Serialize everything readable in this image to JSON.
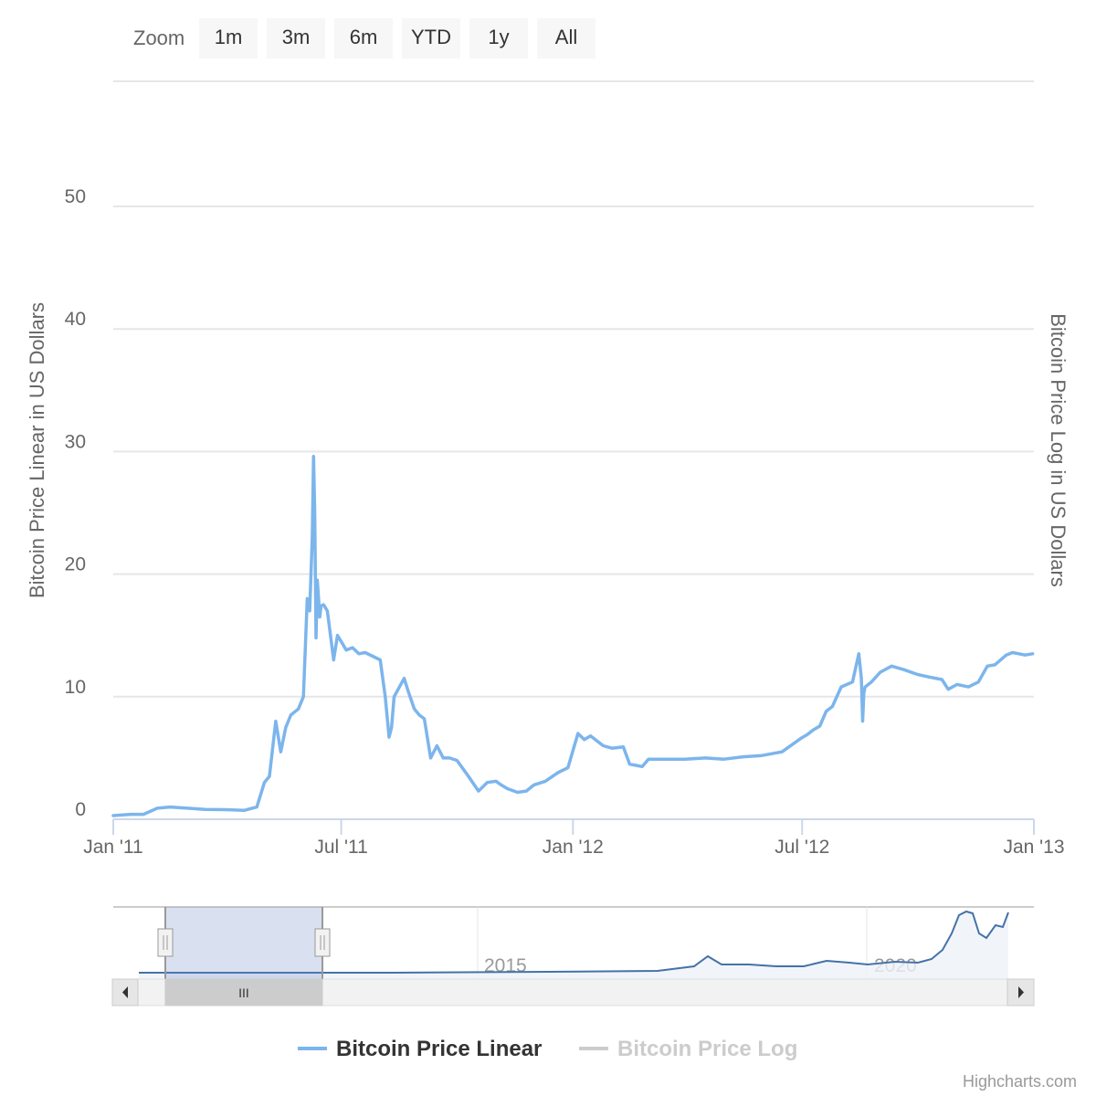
{
  "range_selector": {
    "label": "Zoom",
    "buttons": [
      "1m",
      "3m",
      "6m",
      "YTD",
      "1y",
      "All"
    ]
  },
  "chart_data": {
    "type": "line",
    "xlabel": "",
    "ylabel": "Bitcoin Price Linear in US Dollars",
    "y2label": "Bitcoin Price Log in US Dollars",
    "ylim": [
      0,
      60
    ],
    "yticks": [
      "0",
      "10",
      "20",
      "30",
      "40",
      "50"
    ],
    "xlim": [
      "2011-01-01",
      "2013-01-01"
    ],
    "xticks": [
      {
        "date": "2011-01-01",
        "label": "Jan '11"
      },
      {
        "date": "2011-07-01",
        "label": "Jul '11"
      },
      {
        "date": "2012-01-01",
        "label": "Jan '12"
      },
      {
        "date": "2012-07-01",
        "label": "Jul '12"
      },
      {
        "date": "2013-01-01",
        "label": "Jan '13"
      }
    ],
    "grid": true,
    "legend_position": "bottom",
    "series": [
      {
        "name": "Bitcoin Price Linear",
        "color": "#7cb5ec",
        "visible": true,
        "x": [
          "2011-01-01",
          "2011-01-15",
          "2011-01-25",
          "2011-02-05",
          "2011-02-15",
          "2011-03-01",
          "2011-03-15",
          "2011-04-01",
          "2011-04-15",
          "2011-04-25",
          "2011-05-01",
          "2011-05-05",
          "2011-05-10",
          "2011-05-14",
          "2011-05-18",
          "2011-05-22",
          "2011-05-28",
          "2011-06-01",
          "2011-06-04",
          "2011-06-06",
          "2011-06-08",
          "2011-06-09",
          "2011-06-10",
          "2011-06-11",
          "2011-06-12",
          "2011-06-13",
          "2011-06-14",
          "2011-06-15",
          "2011-06-17",
          "2011-06-20",
          "2011-06-25",
          "2011-06-28",
          "2011-07-01",
          "2011-07-05",
          "2011-07-10",
          "2011-07-15",
          "2011-07-20",
          "2011-08-01",
          "2011-08-05",
          "2011-08-08",
          "2011-08-10",
          "2011-08-12",
          "2011-08-20",
          "2011-08-23",
          "2011-08-28",
          "2011-09-01",
          "2011-09-05",
          "2011-09-10",
          "2011-09-15",
          "2011-09-20",
          "2011-09-25",
          "2011-10-01",
          "2011-10-10",
          "2011-10-18",
          "2011-10-20",
          "2011-10-25",
          "2011-11-01",
          "2011-11-05",
          "2011-11-10",
          "2011-11-18",
          "2011-11-25",
          "2011-12-01",
          "2011-12-10",
          "2011-12-20",
          "2011-12-28",
          "2012-01-05",
          "2012-01-10",
          "2012-01-15",
          "2012-01-25",
          "2012-02-01",
          "2012-02-10",
          "2012-02-15",
          "2012-02-20",
          "2012-02-25",
          "2012-03-01",
          "2012-03-15",
          "2012-03-30",
          "2012-04-15",
          "2012-04-30",
          "2012-05-15",
          "2012-05-30",
          "2012-06-15",
          "2012-06-30",
          "2012-07-05",
          "2012-07-10",
          "2012-07-15",
          "2012-07-20",
          "2012-07-25",
          "2012-08-01",
          "2012-08-10",
          "2012-08-15",
          "2012-08-17",
          "2012-08-18",
          "2012-08-19",
          "2012-08-20",
          "2012-08-25",
          "2012-09-01",
          "2012-09-10",
          "2012-09-20",
          "2012-10-01",
          "2012-10-10",
          "2012-10-20",
          "2012-10-25",
          "2012-11-01",
          "2012-11-10",
          "2012-11-18",
          "2012-11-25",
          "2012-12-01",
          "2012-12-10",
          "2012-12-15",
          "2012-12-20",
          "2012-12-25",
          "2012-12-31"
        ],
        "y": [
          0.3,
          0.4,
          0.4,
          0.9,
          1.0,
          0.9,
          0.8,
          0.78,
          0.72,
          1.0,
          3.0,
          3.5,
          8.0,
          5.5,
          7.5,
          8.5,
          9.0,
          10.0,
          18.0,
          17.0,
          23.0,
          29.6,
          25.0,
          14.8,
          19.5,
          18.0,
          16.5,
          17.4,
          17.5,
          17.0,
          13.0,
          15.0,
          14.5,
          13.8,
          14.0,
          13.5,
          13.6,
          13.0,
          10.0,
          6.7,
          7.5,
          10.0,
          11.5,
          10.5,
          9.0,
          8.5,
          8.2,
          5.0,
          6.0,
          5.0,
          5.0,
          4.8,
          3.5,
          2.3,
          2.5,
          3.0,
          3.1,
          2.8,
          2.5,
          2.2,
          2.3,
          2.8,
          3.1,
          3.8,
          4.2,
          7.0,
          6.5,
          6.8,
          6.0,
          5.8,
          5.9,
          4.5,
          4.4,
          4.3,
          4.9,
          4.9,
          4.9,
          5.0,
          4.9,
          5.1,
          5.2,
          5.5,
          6.6,
          6.9,
          7.3,
          7.6,
          8.8,
          9.2,
          10.8,
          11.2,
          13.5,
          11.5,
          8.0,
          10.3,
          10.8,
          11.2,
          12.0,
          12.5,
          12.2,
          11.8,
          11.6,
          11.4,
          10.6,
          11.0,
          10.8,
          11.2,
          12.5,
          12.6,
          13.4,
          13.6,
          13.5,
          13.4,
          13.5
        ]
      },
      {
        "name": "Bitcoin Price Log",
        "color": "#cccccc",
        "visible": false
      }
    ]
  },
  "navigator": {
    "labels": [
      "2015",
      "2020"
    ],
    "handle_grip": "III"
  },
  "legend": {
    "items": [
      {
        "label": "Bitcoin Price Linear",
        "color": "#7cb5ec",
        "active": true
      },
      {
        "label": "Bitcoin Price Log",
        "color": "#cccccc",
        "active": false
      }
    ]
  },
  "credits": "Highcharts.com"
}
